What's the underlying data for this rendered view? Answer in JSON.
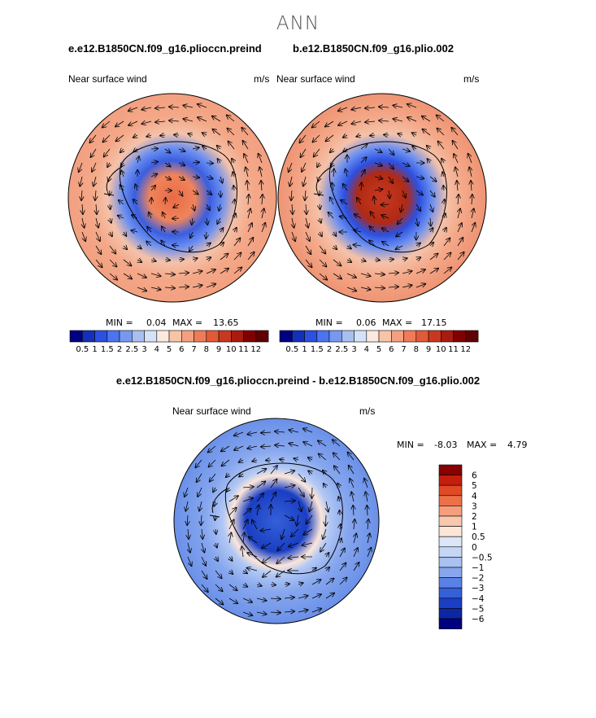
{
  "page": {
    "title": "ANN"
  },
  "panels": [
    {
      "case": "e.e12.B1850CN.f09_g16.plioccn.preind",
      "variable": "Near surface wind",
      "units": "m/s",
      "min_label": "MIN =",
      "min_value": "0.04",
      "max_label": "MAX =",
      "max_value": "13.65"
    },
    {
      "case": "b.e12.B1850CN.f09_g16.plio.002",
      "variable": "Near surface wind",
      "units": "m/s",
      "min_label": "MIN =",
      "min_value": "0.06",
      "max_label": "MAX =",
      "max_value": "17.15"
    }
  ],
  "diff": {
    "title": "e.e12.B1850CN.f09_g16.plioccn.preind - b.e12.B1850CN.f09_g16.plio.002",
    "variable": "Near surface wind",
    "units": "m/s",
    "min_label": "MIN =",
    "min_value": "-8.03",
    "max_label": "MAX =",
    "max_value": "4.79"
  },
  "chart_data": [
    {
      "type": "heatmap",
      "projection": "south polar stereographic",
      "title": "e.e12.B1850CN.f09_g16.plioccn.preind",
      "field": "Near surface wind (m/s), annual mean, with wind vectors",
      "min": 0.04,
      "max": 13.65,
      "colorbar_levels": [
        "0.5",
        "1",
        "1.5",
        "2",
        "2.5",
        "3",
        "4",
        "5",
        "6",
        "7",
        "8",
        "9",
        "10",
        "11",
        "12"
      ],
      "colorbar_orientation": "horizontal"
    },
    {
      "type": "heatmap",
      "projection": "south polar stereographic",
      "title": "b.e12.B1850CN.f09_g16.plio.002",
      "field": "Near surface wind (m/s), annual mean, with wind vectors",
      "min": 0.06,
      "max": 17.15,
      "colorbar_levels": [
        "0.5",
        "1",
        "1.5",
        "2",
        "2.5",
        "3",
        "4",
        "5",
        "6",
        "7",
        "8",
        "9",
        "10",
        "11",
        "12"
      ],
      "colorbar_orientation": "horizontal"
    },
    {
      "type": "heatmap",
      "projection": "south polar stereographic",
      "title": "e.e12.B1850CN.f09_g16.plioccn.preind - b.e12.B1850CN.f09_g16.plio.002",
      "field": "Near surface wind difference (m/s) with wind vectors",
      "min": -8.03,
      "max": 4.79,
      "colorbar_levels": [
        "6",
        "5",
        "4",
        "3",
        "2",
        "1",
        "0.5",
        "0",
        "−0.5",
        "−1",
        "−2",
        "−3",
        "−4",
        "−5",
        "−6"
      ],
      "colorbar_orientation": "vertical"
    }
  ],
  "colors": {
    "bar_mean": [
      "#000080",
      "#1430b8",
      "#2c50e0",
      "#4a74f0",
      "#7898f0",
      "#a8c0f0",
      "#d4e2f8",
      "#fce8dc",
      "#f8c4a8",
      "#f4a080",
      "#ee7c58",
      "#e25a38",
      "#c83820",
      "#a81c10",
      "#800000",
      "#600000"
    ],
    "bar_diff": [
      "#880000",
      "#c41e0c",
      "#e04a24",
      "#ee7048",
      "#f69e7c",
      "#f8c8ae",
      "#fce6d8",
      "#dce6f8",
      "#b2c8f4",
      "#86a6ee",
      "#5a82e6",
      "#3460d8",
      "#1a3ec4",
      "#0c26a4",
      "#000080"
    ]
  }
}
